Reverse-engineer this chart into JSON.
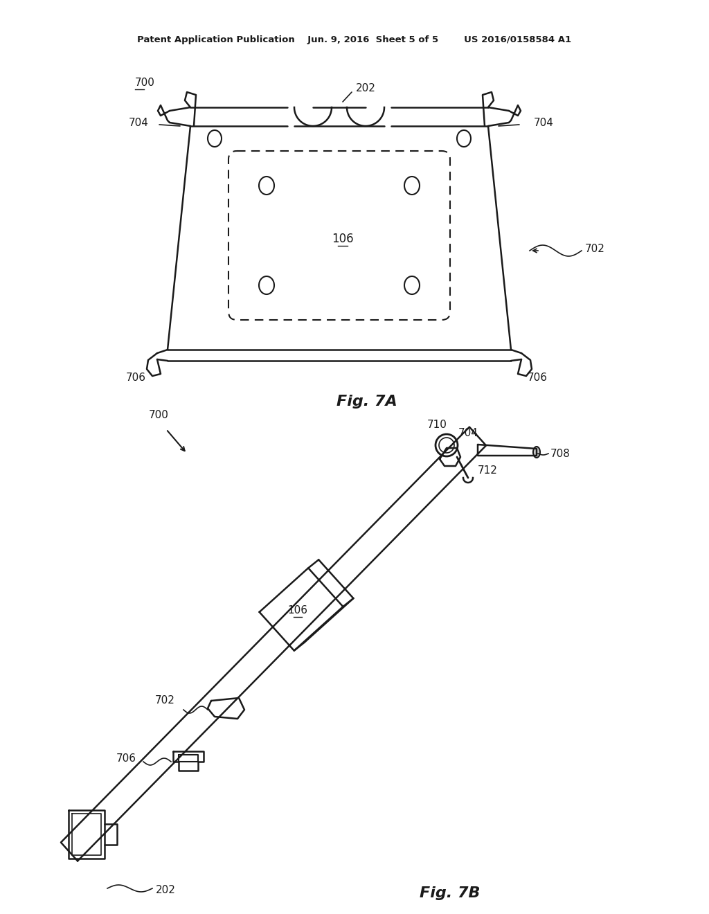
{
  "bg_color": "#ffffff",
  "line_color": "#1a1a1a",
  "text_color": "#1a1a1a",
  "header_text": "Patent Application Publication    Jun. 9, 2016  Sheet 5 of 5        US 2016/0158584 A1",
  "fig7a_label": "Fig. 7A",
  "fig7b_label": "Fig. 7B"
}
